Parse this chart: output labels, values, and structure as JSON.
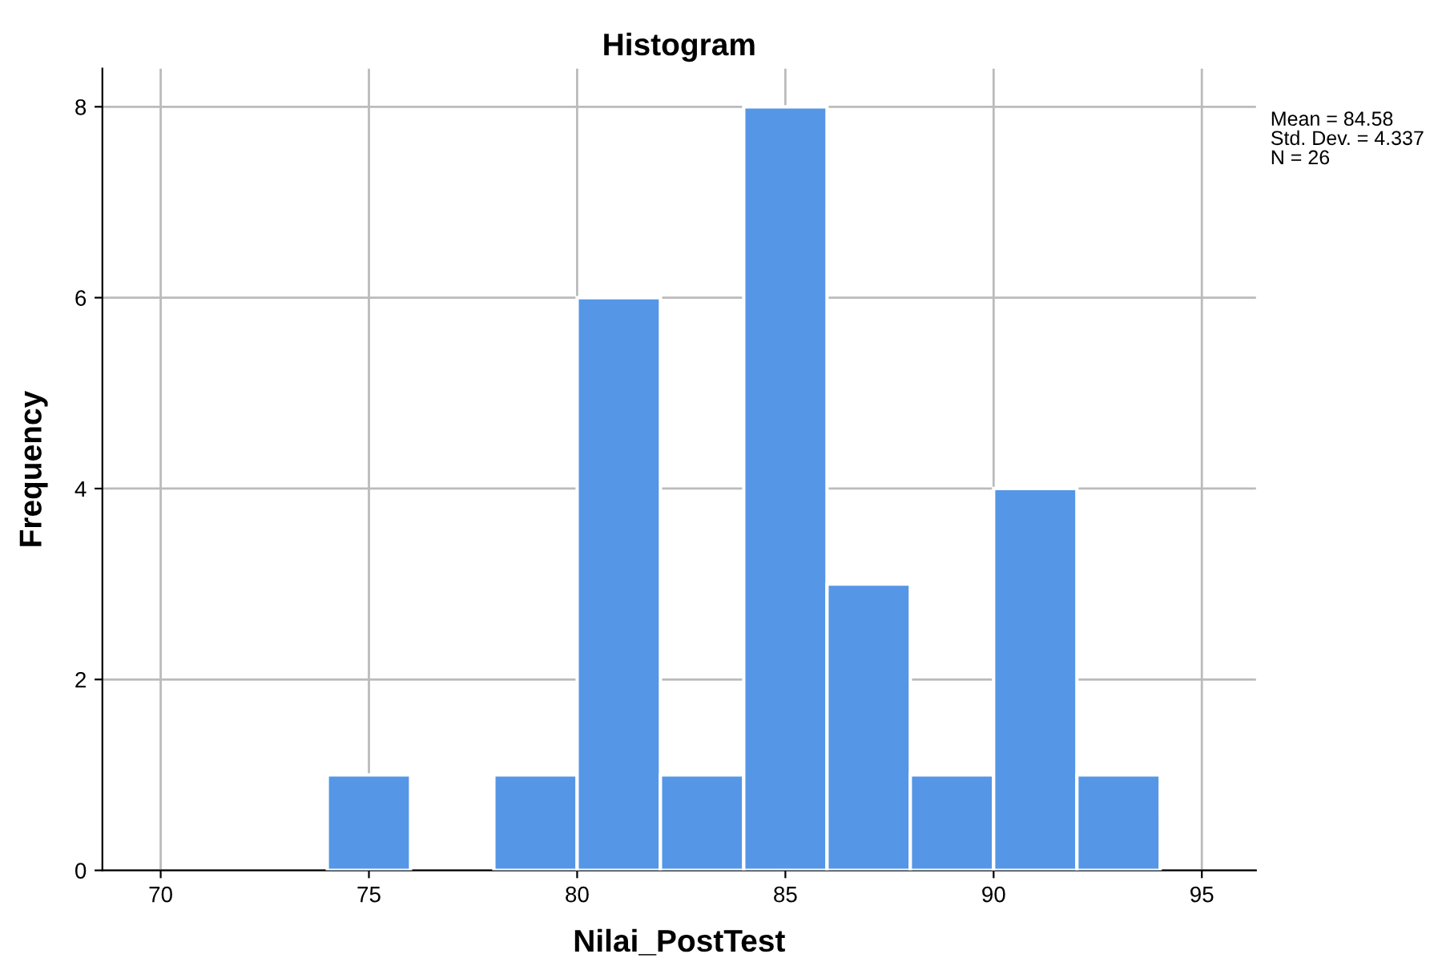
{
  "chart_data": {
    "type": "histogram",
    "title": "Histogram",
    "xlabel": "Nilai_PostTest",
    "ylabel": "Frequency",
    "bins": [
      74,
      76,
      78,
      80,
      82,
      84,
      86,
      88,
      90,
      92,
      94
    ],
    "values": [
      1,
      0,
      1,
      6,
      1,
      8,
      3,
      1,
      4,
      1
    ],
    "color": "#5596e6",
    "xlim": [
      68.6,
      96.3
    ],
    "xticks": [
      70,
      75,
      80,
      85,
      90,
      95
    ],
    "ylim": [
      0,
      8.4
    ],
    "yticks": [
      0,
      2,
      4,
      6,
      8
    ],
    "grid": true,
    "annotations": [
      "Mean = 84.58",
      "Std. Dev. = 4.337",
      "N = 26"
    ]
  }
}
